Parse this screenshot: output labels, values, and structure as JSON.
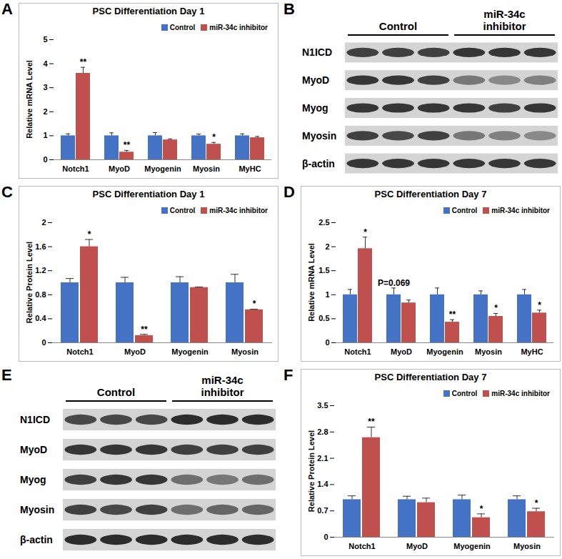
{
  "chart_data": [
    {
      "panel": "A",
      "type": "bar",
      "title": "PSC Differentiation Day 1",
      "y_label": "Relative mRNA Level",
      "categories": [
        "Notch1",
        "MyoD",
        "Myogenin",
        "Myosin",
        "MyHC"
      ],
      "series": [
        {
          "name": "Control",
          "color": "#4472c4",
          "values": [
            1,
            1,
            1,
            1,
            1
          ],
          "errors": [
            0.08,
            0.12,
            0.13,
            0.07,
            0.08
          ],
          "significance": [
            null,
            null,
            null,
            null,
            null
          ]
        },
        {
          "name": "miR-34c inhibitor",
          "color": "#c0504d",
          "values": [
            3.6,
            0.32,
            0.83,
            0.65,
            0.92
          ],
          "errors": [
            0.25,
            0.07,
            0.04,
            0.07,
            0.05
          ],
          "significance": [
            "**",
            "**",
            null,
            "*",
            null
          ]
        }
      ],
      "ylim": [
        0,
        5
      ],
      "yticks": [
        0,
        1,
        2,
        3,
        4,
        5
      ],
      "grid": false,
      "legend": "top-right"
    },
    {
      "panel": "C",
      "type": "bar",
      "title": "PSC Differentiation Day 1",
      "y_label": "Relative Protein Level",
      "categories": [
        "Notch1",
        "MyoD",
        "Myogenin",
        "Myosin"
      ],
      "series": [
        {
          "name": "Control",
          "color": "#4472c4",
          "values": [
            1,
            1,
            1,
            1
          ],
          "errors": [
            0.07,
            0.09,
            0.1,
            0.14
          ],
          "significance": [
            null,
            null,
            null,
            null
          ]
        },
        {
          "name": "miR-34c inhibitor",
          "color": "#c0504d",
          "values": [
            1.6,
            0.12,
            0.92,
            0.55
          ],
          "errors": [
            0.12,
            0.02,
            0.01,
            0.01
          ],
          "significance": [
            "*",
            "**",
            null,
            "*"
          ]
        }
      ],
      "ylim": [
        0,
        2
      ],
      "yticks": [
        0,
        0.4,
        0.8,
        1.2,
        1.6,
        2
      ],
      "grid": false,
      "legend": "top-right"
    },
    {
      "panel": "D",
      "type": "bar",
      "title": "PSC Differentiation Day 7",
      "y_label": "Relative mRNA Level",
      "categories": [
        "Notch1",
        "MyoD",
        "Myogenin",
        "Myosin",
        "MyHC"
      ],
      "series": [
        {
          "name": "Control",
          "color": "#4472c4",
          "values": [
            1,
            1,
            1,
            1,
            1
          ],
          "errors": [
            0.11,
            0.14,
            0.14,
            0.08,
            0.11
          ],
          "significance": [
            null,
            "P=0.069",
            null,
            null,
            null
          ]
        },
        {
          "name": "miR-34c inhibitor",
          "color": "#c0504d",
          "values": [
            1.96,
            0.83,
            0.43,
            0.55,
            0.62
          ],
          "errors": [
            0.24,
            0.06,
            0.05,
            0.06,
            0.06
          ],
          "significance": [
            "*",
            null,
            "**",
            "*",
            "*"
          ]
        }
      ],
      "ylim": [
        0,
        2.5
      ],
      "yticks": [
        0,
        0.5,
        1,
        1.5,
        2,
        2.5
      ],
      "grid": false,
      "legend": "top-right"
    },
    {
      "panel": "F",
      "type": "bar",
      "title": "PSC Differentiation Day 7",
      "y_label": "Relative Protein Level",
      "categories": [
        "Notch1",
        "MyoD",
        "Myogenin",
        "Myosin"
      ],
      "series": [
        {
          "name": "Control",
          "color": "#4472c4",
          "values": [
            1,
            1,
            1,
            1
          ],
          "errors": [
            0.1,
            0.09,
            0.12,
            0.1
          ],
          "significance": [
            null,
            null,
            null,
            null
          ]
        },
        {
          "name": "miR-34c inhibitor",
          "color": "#c0504d",
          "values": [
            2.65,
            0.92,
            0.52,
            0.68
          ],
          "errors": [
            0.28,
            0.12,
            0.1,
            0.09
          ],
          "significance": [
            "**",
            null,
            "*",
            "*"
          ]
        }
      ],
      "ylim": [
        0,
        3.5
      ],
      "yticks": [
        0,
        0.7,
        1.4,
        2.1,
        2.8,
        3.5
      ],
      "grid": false,
      "legend": "top-right"
    }
  ],
  "blots": [
    {
      "panel": "B",
      "groups": [
        {
          "label": "Control",
          "lanes": 3
        },
        {
          "label": "miR-34c inhibitor",
          "lanes": 3
        }
      ],
      "rows": [
        {
          "label": "N1ICD",
          "band_intensity": [
            0.8,
            0.8,
            0.8,
            0.85,
            0.85,
            0.85
          ]
        },
        {
          "label": "MyoD",
          "band_intensity": [
            0.85,
            0.85,
            0.8,
            0.5,
            0.4,
            0.45
          ]
        },
        {
          "label": "Myog",
          "band_intensity": [
            0.85,
            0.85,
            0.85,
            0.85,
            0.8,
            0.85
          ]
        },
        {
          "label": "Myosin",
          "band_intensity": [
            0.8,
            0.75,
            0.8,
            0.5,
            0.45,
            0.4
          ]
        },
        {
          "label": "β-actin",
          "band_intensity": [
            0.85,
            0.85,
            0.85,
            0.85,
            0.85,
            0.85
          ]
        }
      ]
    },
    {
      "panel": "E",
      "groups": [
        {
          "label": "Control",
          "lanes": 3
        },
        {
          "label": "miR-34c inhibitor",
          "lanes": 3
        }
      ],
      "rows": [
        {
          "label": "N1ICD",
          "band_intensity": [
            0.75,
            0.75,
            0.75,
            0.9,
            0.9,
            0.9
          ]
        },
        {
          "label": "MyoD",
          "band_intensity": [
            0.85,
            0.85,
            0.85,
            0.8,
            0.8,
            0.8
          ]
        },
        {
          "label": "Myog",
          "band_intensity": [
            0.8,
            0.85,
            0.85,
            0.55,
            0.5,
            0.55
          ]
        },
        {
          "label": "Myosin",
          "band_intensity": [
            0.8,
            0.75,
            0.8,
            0.55,
            0.6,
            0.6
          ]
        },
        {
          "label": "β-actin",
          "band_intensity": [
            0.9,
            0.9,
            0.9,
            0.9,
            0.9,
            0.9
          ]
        }
      ]
    }
  ]
}
